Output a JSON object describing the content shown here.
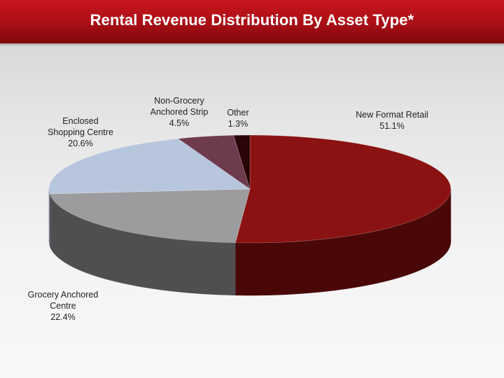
{
  "header": {
    "title": "Rental Revenue Distribution By Asset Type*"
  },
  "chart_data": {
    "type": "pie",
    "title": "Rental Revenue Distribution By Asset Type*",
    "slices": [
      {
        "name": "New Format Retail",
        "value": 51.1,
        "value_label": "51.1%",
        "label_lines": [
          "New Format Retail"
        ],
        "color": "#8b1212",
        "side_color": "#4a0707"
      },
      {
        "name": "Grocery Anchored Centre",
        "value": 22.4,
        "value_label": "22.4%",
        "label_lines": [
          "Grocery Anchored",
          "Centre"
        ],
        "color": "#9c9c9e",
        "side_color": "#4f4f52"
      },
      {
        "name": "Enclosed Shopping Centre",
        "value": 20.6,
        "value_label": "20.6%",
        "label_lines": [
          "Enclosed",
          "Shopping Centre"
        ],
        "color": "#b8c6dd",
        "side_color": "#7a8293"
      },
      {
        "name": "Non-Grocery Anchored Strip",
        "value": 4.5,
        "value_label": "4.5%",
        "label_lines": [
          "Non-Grocery",
          "Anchored Strip"
        ],
        "color": "#6e3a4e",
        "side_color": "#3e1e2a"
      },
      {
        "name": "Other",
        "value": 1.3,
        "value_label": "1.3%",
        "label_lines": [
          "Other"
        ],
        "color": "#2a0406",
        "side_color": "#150203"
      }
    ],
    "legend": "none"
  }
}
